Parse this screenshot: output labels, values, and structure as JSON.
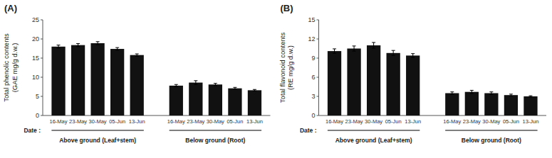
{
  "chart_data": [
    {
      "type": "bar",
      "title": "(A)",
      "y_label": "Total phenolic contents\n(GAE mg/g d.w.)",
      "x_label": "Date :",
      "categories": [
        "16-May",
        "23-May",
        "30-May",
        "05-Jun",
        "13-Jun"
      ],
      "color": "#111111",
      "ylim": [
        0,
        25
      ],
      "yticks": [
        0,
        5,
        10,
        15,
        20,
        25
      ],
      "series": [
        {
          "name": "Above ground (Leaf+stem)",
          "values": [
            18.0,
            18.4,
            18.9,
            17.4,
            15.8
          ],
          "errors": [
            0.4,
            0.4,
            0.4,
            0.35,
            0.3
          ]
        },
        {
          "name": "Below ground (Root)",
          "values": [
            7.8,
            8.6,
            8.1,
            7.1,
            6.6
          ],
          "errors": [
            0.3,
            0.5,
            0.3,
            0.25,
            0.2
          ]
        }
      ]
    },
    {
      "type": "bar",
      "title": "(B)",
      "y_label": "Total flavonoid contents\n(RE mg/g d.w.)",
      "x_label": "Date :",
      "categories": [
        "16-May",
        "23-May",
        "30-May",
        "05-Jun",
        "13-Jun"
      ],
      "color": "#111111",
      "ylim": [
        0,
        15
      ],
      "yticks": [
        0,
        3,
        6,
        9,
        12,
        15
      ],
      "series": [
        {
          "name": "Above ground (Leaf+stem)",
          "values": [
            10.1,
            10.5,
            11.0,
            9.8,
            9.4
          ],
          "errors": [
            0.35,
            0.4,
            0.45,
            0.4,
            0.3
          ]
        },
        {
          "name": "Below ground (Root)",
          "values": [
            3.5,
            3.7,
            3.5,
            3.2,
            3.0
          ],
          "errors": [
            0.2,
            0.25,
            0.2,
            0.15,
            0.1
          ]
        }
      ]
    }
  ]
}
